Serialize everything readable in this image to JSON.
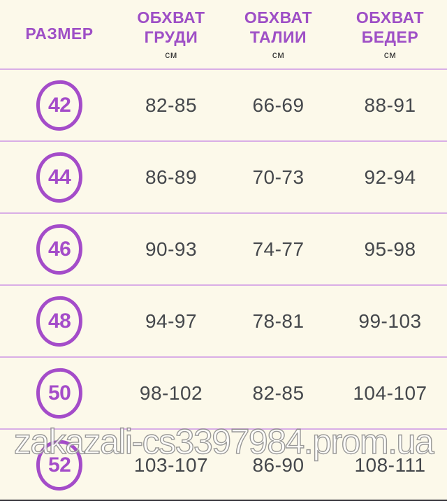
{
  "watermark": "zakazali-cs3397984.prom.ua",
  "colors": {
    "background": "#fcf9ea",
    "accent_purple": "#9e4fc6",
    "circle_purple": "#a44cc9",
    "value_text": "#45484c",
    "separator": "#d9aee6",
    "bottom_edge": "#35333a"
  },
  "table": {
    "columns": [
      {
        "line1": "РАЗМЕР",
        "line2": "",
        "unit": ""
      },
      {
        "line1": "ОБХВАТ",
        "line2": "ГРУДИ",
        "unit": "см"
      },
      {
        "line1": "ОБХВАТ",
        "line2": "ТАЛИИ",
        "unit": "см"
      },
      {
        "line1": "ОБХВАТ",
        "line2": "БЕДЕР",
        "unit": "см"
      }
    ],
    "rows": [
      {
        "size": "42",
        "chest": "82-85",
        "waist": "66-69",
        "hips": "88-91"
      },
      {
        "size": "44",
        "chest": "86-89",
        "waist": "70-73",
        "hips": "92-94"
      },
      {
        "size": "46",
        "chest": "90-93",
        "waist": "74-77",
        "hips": "95-98"
      },
      {
        "size": "48",
        "chest": "94-97",
        "waist": "78-81",
        "hips": "99-103"
      },
      {
        "size": "50",
        "chest": "98-102",
        "waist": "82-85",
        "hips": "104-107"
      },
      {
        "size": "52",
        "chest": "103-107",
        "waist": "86-90",
        "hips": "108-111"
      }
    ]
  },
  "chart_data": {
    "type": "table",
    "title": "Таблица размеров",
    "columns": [
      "РАЗМЕР",
      "ОБХВАТ ГРУДИ см",
      "ОБХВАТ ТАЛИИ см",
      "ОБХВАТ БЕДЕР см"
    ],
    "rows": [
      [
        "42",
        "82-85",
        "66-69",
        "88-91"
      ],
      [
        "44",
        "86-89",
        "70-73",
        "92-94"
      ],
      [
        "46",
        "90-93",
        "74-77",
        "95-98"
      ],
      [
        "48",
        "94-97",
        "78-81",
        "99-103"
      ],
      [
        "50",
        "98-102",
        "82-85",
        "104-107"
      ],
      [
        "52",
        "103-107",
        "86-90",
        "108-111"
      ]
    ]
  }
}
